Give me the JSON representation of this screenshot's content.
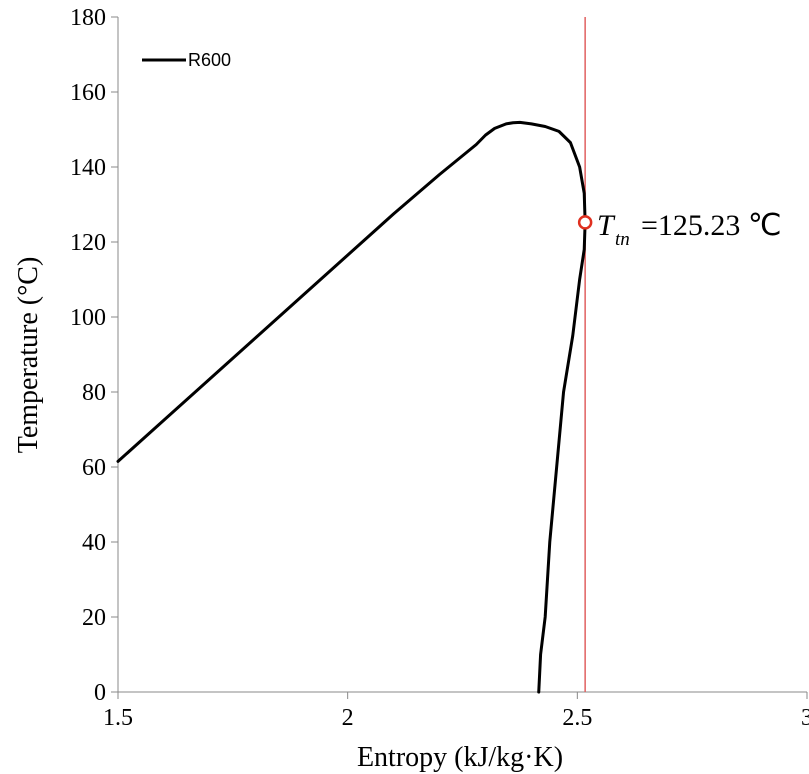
{
  "chart_data": {
    "type": "line",
    "xlabel": "Entropy (kJ/kg·K)",
    "ylabel": "Temperature (°C)",
    "xlim": [
      1.5,
      3
    ],
    "ylim": [
      0,
      180
    ],
    "x_ticks": [
      "1.5",
      "2",
      "2.5",
      "3"
    ],
    "x_tick_values": [
      1.5,
      2,
      2.5,
      3
    ],
    "y_ticks": [
      "0",
      "20",
      "40",
      "60",
      "80",
      "100",
      "120",
      "140",
      "160",
      "180"
    ],
    "y_tick_values": [
      0,
      20,
      40,
      60,
      80,
      100,
      120,
      140,
      160,
      180
    ],
    "grid": false,
    "legend_position": "top-left",
    "series": [
      {
        "name": "R600",
        "color": "#000000",
        "points": [
          [
            1.5,
            61.5
          ],
          [
            1.6,
            72.5
          ],
          [
            1.7,
            83.5
          ],
          [
            1.8,
            94.5
          ],
          [
            1.9,
            105.5
          ],
          [
            2.0,
            116.5
          ],
          [
            2.1,
            127.5
          ],
          [
            2.2,
            138.0
          ],
          [
            2.25,
            143.0
          ],
          [
            2.28,
            146.0
          ],
          [
            2.3,
            148.5
          ],
          [
            2.32,
            150.3
          ],
          [
            2.345,
            151.5
          ],
          [
            2.36,
            151.8
          ],
          [
            2.375,
            151.9
          ],
          [
            2.4,
            151.5
          ],
          [
            2.43,
            150.8
          ],
          [
            2.46,
            149.5
          ],
          [
            2.485,
            146.5
          ],
          [
            2.505,
            140.0
          ],
          [
            2.515,
            133.0
          ],
          [
            2.517,
            125.23
          ],
          [
            2.515,
            118.0
          ],
          [
            2.505,
            110.0
          ],
          [
            2.49,
            95.0
          ],
          [
            2.47,
            80.0
          ],
          [
            2.455,
            60.0
          ],
          [
            2.44,
            40.0
          ],
          [
            2.43,
            20.0
          ],
          [
            2.42,
            10.0
          ],
          [
            2.418,
            5.0
          ],
          [
            2.416,
            0.0
          ]
        ]
      }
    ],
    "reference_line": {
      "x": 2.517,
      "color": "#e06060"
    },
    "marker": {
      "x": 2.517,
      "y": 125.23,
      "color": "#e03020"
    },
    "annotation": {
      "symbol": "T",
      "subscript": "tn",
      "text": "=125.23 ℃"
    }
  }
}
